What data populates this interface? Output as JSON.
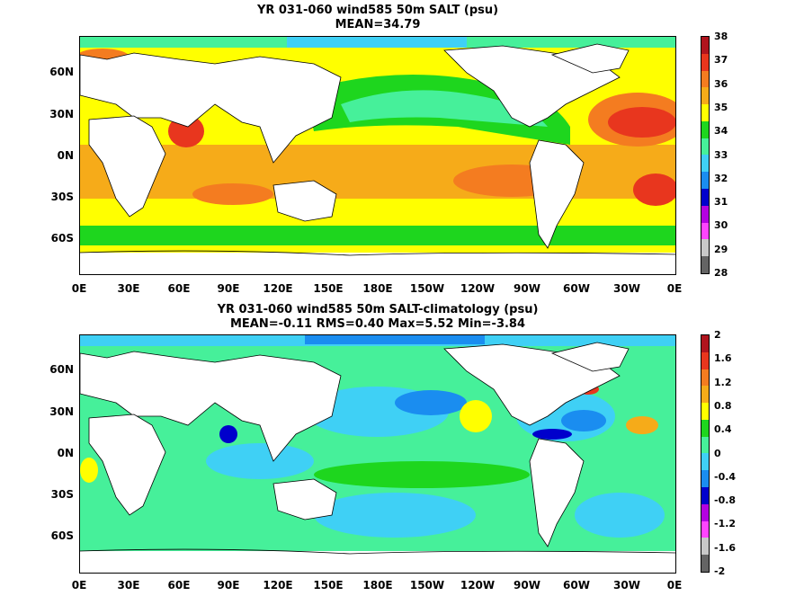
{
  "top": {
    "title_line1": "YR 031-060 wind585 50m SALT (psu)",
    "title_line2": "MEAN=34.79",
    "lat_labels": [
      "60N",
      "30N",
      "0N",
      "30S",
      "60S"
    ],
    "lon_labels": [
      "0E",
      "30E",
      "60E",
      "90E",
      "120E",
      "150E",
      "180E",
      "150W",
      "120W",
      "90W",
      "60W",
      "30W",
      "0E"
    ],
    "colorbar_labels": [
      "38",
      "37",
      "36",
      "35",
      "34",
      "33",
      "32",
      "31",
      "30",
      "29",
      "28"
    ],
    "colorbar_colors": [
      "#b0141e",
      "#e8361e",
      "#f47c20",
      "#f6ab19",
      "#ffff00",
      "#1ed61e",
      "#46f09a",
      "#3fd0f5",
      "#1a8df0",
      "#0000cc",
      "#b400e0",
      "#ff44ff",
      "#c8c8c8",
      "#646464"
    ]
  },
  "bottom": {
    "title_line1": "YR 031-060 wind585 50m SALT-climatology (psu)",
    "title_line2": "MEAN=-0.11   RMS=0.40   Max=5.52   Min=-3.84",
    "lat_labels": [
      "60N",
      "30N",
      "0N",
      "30S",
      "60S"
    ],
    "lon_labels": [
      "0E",
      "30E",
      "60E",
      "90E",
      "120E",
      "150E",
      "180E",
      "150W",
      "120W",
      "90W",
      "60W",
      "30W",
      "0E"
    ],
    "colorbar_labels": [
      "2",
      "1.6",
      "1.2",
      "0.8",
      "0.4",
      "0",
      "-0.4",
      "-0.8",
      "-1.2",
      "-1.6",
      "-2"
    ],
    "colorbar_colors": [
      "#b0141e",
      "#e8361e",
      "#f47c20",
      "#f6ab19",
      "#ffff00",
      "#1ed61e",
      "#46f09a",
      "#3fd0f5",
      "#1a8df0",
      "#0000cc",
      "#b400e0",
      "#ff44ff",
      "#c8c8c8",
      "#646464"
    ]
  }
}
